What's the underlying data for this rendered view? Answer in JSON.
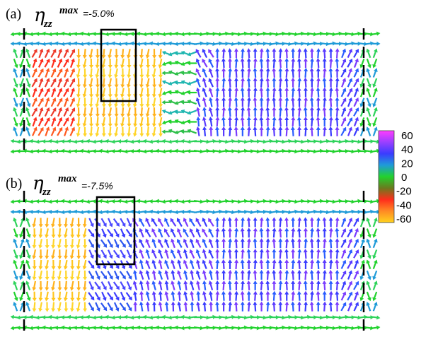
{
  "panels": [
    {
      "label": "(a)",
      "eta_symbol": "η",
      "subscript": "zz",
      "superscript": "max",
      "value": "=-5.0%",
      "regions": [
        {
          "from": 0.0,
          "to": 0.04,
          "kind": "edge"
        },
        {
          "from": 0.04,
          "to": 0.16,
          "kind": "neg_up"
        },
        {
          "from": 0.16,
          "to": 0.41,
          "kind": "neg_down"
        },
        {
          "from": 0.41,
          "to": 0.5,
          "kind": "neutral"
        },
        {
          "from": 0.5,
          "to": 0.96,
          "kind": "pos_up"
        },
        {
          "from": 0.96,
          "to": 1.0,
          "kind": "edge"
        }
      ]
    },
    {
      "label": "(b)",
      "eta_symbol": "η",
      "subscript": "zz",
      "superscript": "max",
      "value": "=-7.5%",
      "regions": [
        {
          "from": 0.0,
          "to": 0.04,
          "kind": "edge"
        },
        {
          "from": 0.04,
          "to": 0.2,
          "kind": "neg_down"
        },
        {
          "from": 0.2,
          "to": 0.33,
          "kind": "pos_down"
        },
        {
          "from": 0.33,
          "to": 0.96,
          "kind": "pos_up"
        },
        {
          "from": 0.96,
          "to": 1.0,
          "kind": "edge"
        }
      ]
    }
  ],
  "colorbar": {
    "ticks": [
      "60",
      "40",
      "20",
      "0",
      "-20",
      "-40",
      "-60"
    ],
    "stops": [
      "#ff3cff",
      "#9a40ff",
      "#3a3cff",
      "#1f9bd8",
      "#22d22e",
      "#6b7a1e",
      "#ff2d1c",
      "#ff8a24",
      "#ffd21e"
    ]
  }
}
